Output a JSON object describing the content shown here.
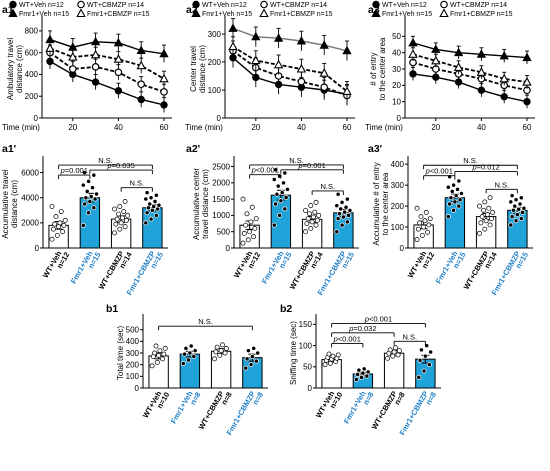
{
  "colors": {
    "blue": "#1fa3d9",
    "black": "#000000",
    "white": "#ffffff",
    "gray": "#777777",
    "xlabel_blue": "#1f7fc7"
  },
  "chart_data": [
    {
      "id": "a1",
      "type": "line",
      "panel_label": "a1",
      "ylabel": [
        "Ambulatory travel",
        "distance (cm)"
      ],
      "xlabel": "Time (min)",
      "x": [
        10,
        20,
        30,
        40,
        50,
        60
      ],
      "xticks": [
        "20",
        "40",
        "60"
      ],
      "xtick_values": [
        20,
        40,
        60
      ],
      "ylim": [
        0,
        900
      ],
      "yticks": [
        0,
        200,
        400,
        600,
        800
      ],
      "legend": [
        {
          "label": "WT+Veh",
          "n": "n=12",
          "marker": "filled-circle"
        },
        {
          "label": "WT+CBMZP",
          "n": "n=14",
          "marker": "open-circle"
        },
        {
          "label": "Fmr1+Veh",
          "n": "n=15",
          "marker": "filled-triangle"
        },
        {
          "label": "Fmr1+CBMZP",
          "n": "n=15",
          "marker": "open-triangle"
        }
      ],
      "series": [
        {
          "name": "WT+Veh",
          "values": [
            520,
            400,
            330,
            250,
            170,
            120
          ],
          "err": 70,
          "marker": "filled-circle",
          "dash": "solid"
        },
        {
          "name": "WT+CBMZP",
          "values": [
            600,
            450,
            470,
            420,
            310,
            240
          ],
          "err": 70,
          "marker": "open-circle",
          "dash": "dash"
        },
        {
          "name": "Fmr1+Veh",
          "values": [
            720,
            650,
            700,
            690,
            620,
            590
          ],
          "err": 80,
          "marker": "filled-triangle",
          "dash": "solid"
        },
        {
          "name": "Fmr1+CBMZP",
          "values": [
            640,
            560,
            580,
            540,
            480,
            360
          ],
          "err": 70,
          "marker": "open-triangle",
          "dash": "dash"
        }
      ]
    },
    {
      "id": "a2",
      "type": "line",
      "panel_label": "a2",
      "ylabel": [
        "Center travel",
        "distance (cm)"
      ],
      "xlabel": "Time (min)",
      "x": [
        10,
        20,
        30,
        40,
        50,
        60
      ],
      "xticks": [
        "20",
        "40",
        "60"
      ],
      "xtick_values": [
        20,
        40,
        60
      ],
      "ylim": [
        0,
        350
      ],
      "yticks": [
        0,
        100,
        200,
        300
      ],
      "legend": [
        {
          "label": "WT+Veh",
          "n": "n=12",
          "marker": "filled-circle"
        },
        {
          "label": "WT+CBMZP",
          "n": "n=14",
          "marker": "open-circle"
        },
        {
          "label": "Fmr1+Veh",
          "n": "n=15",
          "marker": "filled-triangle"
        },
        {
          "label": "Fmr1+CBMZP",
          "n": "n=15",
          "marker": "open-triangle"
        }
      ],
      "series": [
        {
          "name": "WT+Veh",
          "values": [
            215,
            145,
            120,
            110,
            100,
            85
          ],
          "err": 35,
          "marker": "filled-circle",
          "dash": "solid"
        },
        {
          "name": "WT+CBMZP",
          "values": [
            240,
            180,
            150,
            130,
            110,
            80
          ],
          "err": 35,
          "marker": "open-circle",
          "dash": "dash"
        },
        {
          "name": "Fmr1+Veh",
          "values": [
            320,
            290,
            285,
            275,
            260,
            240
          ],
          "err": 35,
          "marker": "filled-triangle",
          "dash": "solid"
        },
        {
          "name": "Fmr1+CBMZP",
          "values": [
            255,
            205,
            190,
            175,
            160,
            95
          ],
          "err": 35,
          "marker": "open-triangle",
          "dash": "dash"
        }
      ]
    },
    {
      "id": "a3",
      "type": "line",
      "panel_label": "a3",
      "ylabel": [
        "# of entry",
        "to the center area"
      ],
      "xlabel": "Time (min)",
      "x": [
        10,
        20,
        30,
        40,
        50,
        60
      ],
      "xticks": [
        "20",
        "40",
        "60"
      ],
      "xtick_values": [
        20,
        40,
        60
      ],
      "ylim": [
        0,
        60
      ],
      "yticks": [
        0,
        10,
        20,
        30,
        40,
        50
      ],
      "legend": [
        {
          "label": "WT+Veh",
          "n": "n=12",
          "marker": "filled-circle"
        },
        {
          "label": "WT+CBMZP",
          "n": "n=14",
          "marker": "open-circle"
        },
        {
          "label": "Fmr1+Veh",
          "n": "n=15",
          "marker": "filled-triangle"
        },
        {
          "label": "Fmr1+CBMZP",
          "n": "n=15",
          "marker": "open-triangle"
        }
      ],
      "series": [
        {
          "name": "WT+Veh",
          "values": [
            27,
            25,
            22,
            17,
            13,
            10
          ],
          "err": 4,
          "marker": "filled-circle",
          "dash": "solid"
        },
        {
          "name": "WT+CBMZP",
          "values": [
            34,
            30,
            27,
            24,
            20,
            17
          ],
          "err": 4,
          "marker": "open-circle",
          "dash": "dash"
        },
        {
          "name": "Fmr1+Veh",
          "values": [
            46,
            42,
            40,
            39,
            38,
            37
          ],
          "err": 4,
          "marker": "filled-triangle",
          "dash": "solid"
        },
        {
          "name": "Fmr1+CBMZP",
          "values": [
            39,
            35,
            31,
            28,
            24,
            22
          ],
          "err": 4,
          "marker": "open-triangle",
          "dash": "dash"
        }
      ]
    },
    {
      "id": "a1p",
      "type": "bar",
      "panel_label": "a1'",
      "ylabel": [
        "Accumulative travel",
        "distance (cm)"
      ],
      "ylim": [
        0,
        7000
      ],
      "yticks": [
        0,
        2000,
        4000,
        6000
      ],
      "categories": [
        {
          "name": "WT+Veh",
          "n": "n=12",
          "fill": "white",
          "label_color": "black"
        },
        {
          "name": "Fmr1+Veh",
          "n": "n=15",
          "fill": "blue",
          "label_color": "blue"
        },
        {
          "name": "WT+CBMZP",
          "n": "n=14",
          "fill": "white",
          "label_color": "black"
        },
        {
          "name": "Fmr1+CBMZP",
          "n": "n=15",
          "fill": "blue",
          "label_color": "blue"
        }
      ],
      "values": [
        1800,
        4000,
        2300,
        3200
      ],
      "err": [
        300,
        350,
        250,
        250
      ],
      "points": [
        [
          700,
          1000,
          1300,
          1500,
          1700,
          1800,
          1900,
          2000,
          2200,
          2500,
          2900,
          3300
        ],
        [
          1800,
          2800,
          3200,
          3500,
          3700,
          3900,
          4000,
          4100,
          4300,
          4500,
          4800,
          5000,
          5300,
          5800,
          6000
        ],
        [
          1200,
          1500,
          1700,
          1900,
          2000,
          2200,
          2300,
          2400,
          2600,
          2700,
          2900,
          3100,
          3300,
          3700
        ],
        [
          2000,
          2300,
          2600,
          2800,
          3000,
          3100,
          3200,
          3300,
          3400,
          3500,
          3700,
          3900,
          4000,
          4200,
          4400
        ]
      ],
      "brackets": [
        {
          "from": 0,
          "to": 3,
          "label": "N.S.",
          "y": 6600
        },
        {
          "from": 0,
          "to": 1,
          "label": "p=0.001",
          "prefix_italic": true,
          "y": 5800
        },
        {
          "from": 1,
          "to": 3,
          "label": "p=0.035",
          "prefix_italic": true,
          "y": 6200
        },
        {
          "from": 2,
          "to": 3,
          "label": "N.S.",
          "y": 4800
        }
      ]
    },
    {
      "id": "a2p",
      "type": "bar",
      "panel_label": "a2'",
      "ylabel": [
        "Accumulative center",
        "travel distance (cm)"
      ],
      "ylim": [
        0,
        2700
      ],
      "yticks": [
        0,
        500,
        1000,
        1500,
        2000,
        2500
      ],
      "categories": [
        {
          "name": "WT+Veh",
          "n": "n=12",
          "fill": "white",
          "label_color": "black"
        },
        {
          "name": "Fmr1+Veh",
          "n": "n=15",
          "fill": "blue",
          "label_color": "blue"
        },
        {
          "name": "WT+CBMZP",
          "n": "n=14",
          "fill": "white",
          "label_color": "black"
        },
        {
          "name": "Fmr1+CBMZP",
          "n": "n=15",
          "fill": "blue",
          "label_color": "blue"
        }
      ],
      "values": [
        700,
        1620,
        880,
        1080
      ],
      "err": [
        130,
        150,
        90,
        100
      ],
      "points": [
        [
          150,
          250,
          350,
          450,
          500,
          600,
          700,
          800,
          900,
          1050,
          1250,
          1500
        ],
        [
          700,
          1000,
          1200,
          1350,
          1450,
          1550,
          1650,
          1700,
          1800,
          1900,
          2000,
          2100,
          2200,
          2300,
          2400
        ],
        [
          500,
          600,
          700,
          750,
          800,
          850,
          900,
          950,
          1000,
          1050,
          1100,
          1150,
          1300,
          1400
        ],
        [
          500,
          700,
          800,
          900,
          950,
          1000,
          1050,
          1100,
          1150,
          1200,
          1250,
          1300,
          1400,
          1500,
          1650
        ]
      ],
      "brackets": [
        {
          "from": 0,
          "to": 3,
          "label": "N.S.",
          "y": 2550
        },
        {
          "from": 0,
          "to": 1,
          "label": "p<0.001",
          "prefix_italic": true,
          "y": 2250
        },
        {
          "from": 1,
          "to": 3,
          "label": "p=0.001",
          "prefix_italic": true,
          "y": 2400
        },
        {
          "from": 2,
          "to": 3,
          "label": "N.S.",
          "y": 1750
        }
      ]
    },
    {
      "id": "a3p",
      "type": "bar",
      "panel_label": "a3'",
      "ylabel": [
        "Accumulative # of entry",
        "to the center area"
      ],
      "ylim": [
        0,
        420
      ],
      "yticks": [
        0,
        100,
        200,
        300,
        400
      ],
      "categories": [
        {
          "name": "WT+Veh",
          "n": "n=12",
          "fill": "white",
          "label_color": "black"
        },
        {
          "name": "Fmr1+Veh",
          "n": "n=15",
          "fill": "blue",
          "label_color": "blue"
        },
        {
          "name": "WT+CBMZP",
          "n": "n=14",
          "fill": "white",
          "label_color": "black"
        },
        {
          "name": "Fmr1+CBMZP",
          "n": "n=15",
          "fill": "blue",
          "label_color": "blue"
        }
      ],
      "values": [
        110,
        240,
        150,
        180
      ],
      "err": [
        18,
        18,
        15,
        14
      ],
      "points": [
        [
          40,
          60,
          75,
          90,
          100,
          110,
          120,
          130,
          140,
          150,
          170,
          190
        ],
        [
          150,
          180,
          200,
          210,
          220,
          230,
          240,
          250,
          260,
          270,
          280,
          290,
          300,
          320,
          340
        ],
        [
          70,
          90,
          110,
          120,
          130,
          140,
          150,
          160,
          170,
          180,
          190,
          200,
          220,
          240
        ],
        [
          110,
          130,
          140,
          150,
          160,
          170,
          180,
          185,
          190,
          200,
          210,
          220,
          230,
          240,
          250
        ]
      ],
      "brackets": [
        {
          "from": 0,
          "to": 3,
          "label": "N.S.",
          "y": 395
        },
        {
          "from": 0,
          "to": 1,
          "label": "p<0.001",
          "prefix_italic": true,
          "y": 345
        },
        {
          "from": 1,
          "to": 3,
          "label": "p=0.012",
          "prefix_italic": true,
          "y": 365
        },
        {
          "from": 2,
          "to": 3,
          "label": "N.S.",
          "y": 280
        }
      ]
    },
    {
      "id": "b1",
      "type": "bar",
      "panel_label": "b1",
      "ylabel": [
        "Total time (sec)"
      ],
      "ylim": [
        0,
        600
      ],
      "yticks": [
        0,
        100,
        200,
        300,
        400,
        500
      ],
      "categories": [
        {
          "name": "WT+Veh",
          "n": "n=10",
          "fill": "white",
          "label_color": "black"
        },
        {
          "name": "Fmr1+Veh",
          "n": "n=8",
          "fill": "blue",
          "label_color": "blue"
        },
        {
          "name": "WT+CBMZP",
          "n": "n=8",
          "fill": "white",
          "label_color": "black"
        },
        {
          "name": "Fmr1+CBMZP",
          "n": "n=8",
          "fill": "blue",
          "label_color": "blue"
        }
      ],
      "values": [
        275,
        290,
        315,
        260
      ],
      "err": [
        25,
        25,
        22,
        30
      ],
      "points": [
        [
          190,
          220,
          250,
          270,
          280,
          290,
          300,
          320,
          340,
          360
        ],
        [
          210,
          240,
          270,
          290,
          300,
          320,
          340,
          360
        ],
        [
          250,
          280,
          300,
          310,
          320,
          340,
          350,
          370
        ],
        [
          170,
          200,
          230,
          250,
          270,
          300,
          320,
          340
        ]
      ],
      "brackets": [
        {
          "from": 0,
          "to": 3,
          "label": "N.S.",
          "y": 530
        }
      ]
    },
    {
      "id": "b2",
      "type": "bar",
      "panel_label": "b2",
      "ylabel": [
        "Sniffing time (sec)"
      ],
      "ylim": [
        0,
        165
      ],
      "yticks": [
        0,
        50,
        100,
        150
      ],
      "categories": [
        {
          "name": "WT+Veh",
          "n": "n=10",
          "fill": "white",
          "label_color": "black"
        },
        {
          "name": "Fmr1+Veh",
          "n": "n=8",
          "fill": "blue",
          "label_color": "blue"
        },
        {
          "name": "WT+CBMZP",
          "n": "n=8",
          "fill": "white",
          "label_color": "black"
        },
        {
          "name": "Fmr1+CBMZP",
          "n": "n=8",
          "fill": "blue",
          "label_color": "blue"
        }
      ],
      "values": [
        67,
        33,
        82,
        68
      ],
      "err": [
        5,
        4,
        6,
        9
      ],
      "points": [
        [
          55,
          58,
          62,
          65,
          68,
          70,
          72,
          75,
          78,
          80
        ],
        [
          20,
          25,
          28,
          32,
          35,
          38,
          42,
          45
        ],
        [
          70,
          75,
          78,
          82,
          85,
          88,
          90,
          95
        ],
        [
          25,
          40,
          55,
          65,
          75,
          85,
          90,
          100
        ]
      ],
      "brackets": [
        {
          "from": 0,
          "to": 1,
          "label": "p<0.001",
          "prefix_italic": true,
          "y": 105
        },
        {
          "from": 0,
          "to": 2,
          "label": "p=0.032",
          "prefix_italic": true,
          "y": 130
        },
        {
          "from": 0,
          "to": 3,
          "label": "p<0.001",
          "prefix_italic": true,
          "y": 152
        },
        {
          "from": 2,
          "to": 3,
          "label": "N.S.",
          "y": 110
        }
      ]
    }
  ]
}
